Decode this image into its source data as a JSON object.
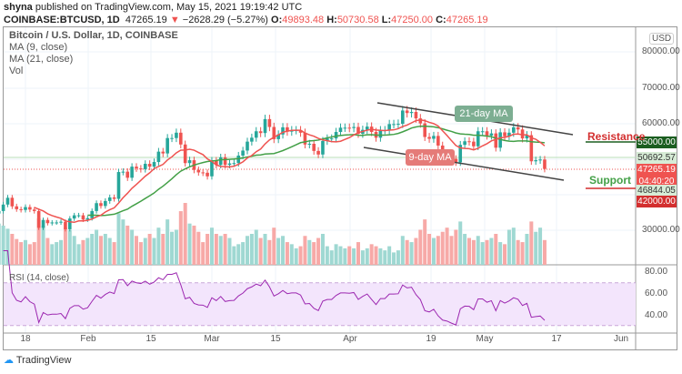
{
  "header": {
    "author": "shyna",
    "published": "published on TradingView.com, May 15, 2021 19:19:42 UTC",
    "symbol": "COINBASE:BTCUSD, 1D",
    "last": "47265.19",
    "change": "−2628.29 (−5.27%)",
    "o_label": "O:",
    "o": "49893.48",
    "h_label": "H:",
    "h": "50730.58",
    "l_label": "L:",
    "l": "47250.00",
    "c_label": "C:",
    "c": "47265.19"
  },
  "legend": {
    "title": "Bitcoin / U.S. Dollar, 1D, COINBASE",
    "ma9": "MA (9, close)",
    "ma21": "MA (21, close)",
    "vol": "Vol",
    "rsi": "RSI (14, close)"
  },
  "axis": {
    "currency": "USD",
    "price_ticks": [
      "80000.00",
      "70000.00",
      "60000.00",
      "30000.00"
    ],
    "rsi_ticks": [
      "80.00",
      "60.00",
      "40.00"
    ],
    "time_ticks": [
      "18",
      "Feb",
      "15",
      "Mar",
      "15",
      "Apr",
      "19",
      "May",
      "17",
      "Jun"
    ]
  },
  "price_tags": {
    "resistance_level": "55000.00",
    "ma21_value": "50692.57",
    "last": "47265.19",
    "countdown": "04:40:20",
    "ma9_value": "46844.05",
    "support_level": "42000.00"
  },
  "annotations": {
    "ma21_label": "21-day MA",
    "ma9_label": "9-day MA",
    "resistance": "Resistance",
    "support": "Support"
  },
  "colors": {
    "up": "#26a69a",
    "down": "#ef5350",
    "ma9": "#ef5350",
    "ma21": "#43a047",
    "rsi": "#9c27b0",
    "resistance_tag": "#1b5e20"
  },
  "brand": "TradingView",
  "chart_data": {
    "type": "candlestick",
    "interval": "1D",
    "first_date": "2021-01-12",
    "last_date": "2021-05-15",
    "ylim": [
      20000,
      85000
    ],
    "closes": [
      35500,
      37300,
      39200,
      36800,
      36000,
      35800,
      36600,
      35900,
      35500,
      30800,
      33000,
      32100,
      32300,
      32300,
      32500,
      30400,
      33400,
      34300,
      34300,
      33100,
      33500,
      35500,
      37700,
      36900,
      38300,
      39300,
      38900,
      46400,
      46500,
      44800,
      47900,
      47400,
      47200,
      48700,
      47900,
      49200,
      52100,
      51600,
      55900,
      55900,
      57400,
      54100,
      48900,
      49700,
      47000,
      46300,
      46200,
      45200,
      49600,
      48400,
      50500,
      48400,
      48800,
      48900,
      51000,
      52400,
      54900,
      56000,
      57800,
      57300,
      61200,
      59000,
      55600,
      56900,
      58900,
      57700,
      58100,
      58100,
      57400,
      54100,
      54300,
      52300,
      51300,
      55100,
      55800,
      55800,
      57600,
      58800,
      58800,
      58700,
      59000,
      57100,
      58200,
      59100,
      57600,
      56000,
      58100,
      58100,
      59800,
      59800,
      59900,
      63600,
      62900,
      63200,
      61400,
      60000,
      56200,
      55700,
      56500,
      53800,
      51700,
      51200,
      50100,
      49100,
      54000,
      55000,
      54900,
      53600,
      57800,
      57800,
      56600,
      57200,
      53200,
      57500,
      56400,
      57400,
      58900,
      58300,
      55800,
      56700,
      49400,
      49700,
      49893,
      47265
    ],
    "volumes": [
      40,
      38,
      35,
      30,
      25,
      22,
      24,
      20,
      22,
      45,
      38,
      26,
      20,
      22,
      24,
      36,
      34,
      28,
      20,
      24,
      26,
      30,
      34,
      28,
      30,
      26,
      22,
      50,
      44,
      38,
      34,
      28,
      22,
      26,
      30,
      26,
      36,
      30,
      44,
      32,
      34,
      52,
      60,
      40,
      38,
      32,
      22,
      30,
      36,
      30,
      28,
      30,
      26,
      18,
      20,
      22,
      28,
      30,
      34,
      26,
      30,
      24,
      36,
      26,
      28,
      22,
      20,
      16,
      18,
      28,
      24,
      22,
      26,
      30,
      18,
      14,
      20,
      18,
      16,
      18,
      16,
      22,
      14,
      16,
      20,
      18,
      16,
      14,
      18,
      12,
      14,
      28,
      24,
      22,
      26,
      34,
      44,
      30,
      26,
      28,
      32,
      36,
      28,
      34,
      42,
      30,
      26,
      24,
      28,
      22,
      24,
      26,
      30,
      22,
      20,
      34,
      36,
      24,
      22,
      30,
      42,
      32,
      36,
      24
    ]
  }
}
